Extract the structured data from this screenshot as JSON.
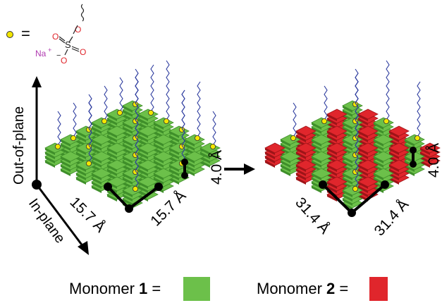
{
  "legend_top": {
    "equals": "=",
    "sulfonate": {
      "oxygen": "O",
      "sulfur": "S",
      "sodium": "Na",
      "plus": "+",
      "minus": "−"
    }
  },
  "axes": {
    "out_of_plane": "Out-of-plane",
    "in_plane": "In-plane"
  },
  "left_stack": {
    "spacing_a": "15.7 Å",
    "spacing_b": "15.7 Å",
    "stacking": "4.0 Å"
  },
  "right_stack": {
    "spacing_a": "31.4 Å",
    "spacing_b": "31.4 Å",
    "stacking": "4.0 Å"
  },
  "legend_bottom": {
    "monomer1_prefix": "Monomer ",
    "monomer1_number": "1",
    "monomer2_prefix": "Monomer ",
    "monomer2_number": "2",
    "equals": " ="
  },
  "colors": {
    "green": "#6cc04a",
    "green_dark": "#3f8f2a",
    "green_light": "#9bdc6e",
    "red": "#e0262c",
    "red_dark": "#9e1418",
    "chain": "#2b3a9e",
    "sulfonate_dot": "#f2e600",
    "oxygen": "#e0262c",
    "sodium": "#b03ab0"
  }
}
